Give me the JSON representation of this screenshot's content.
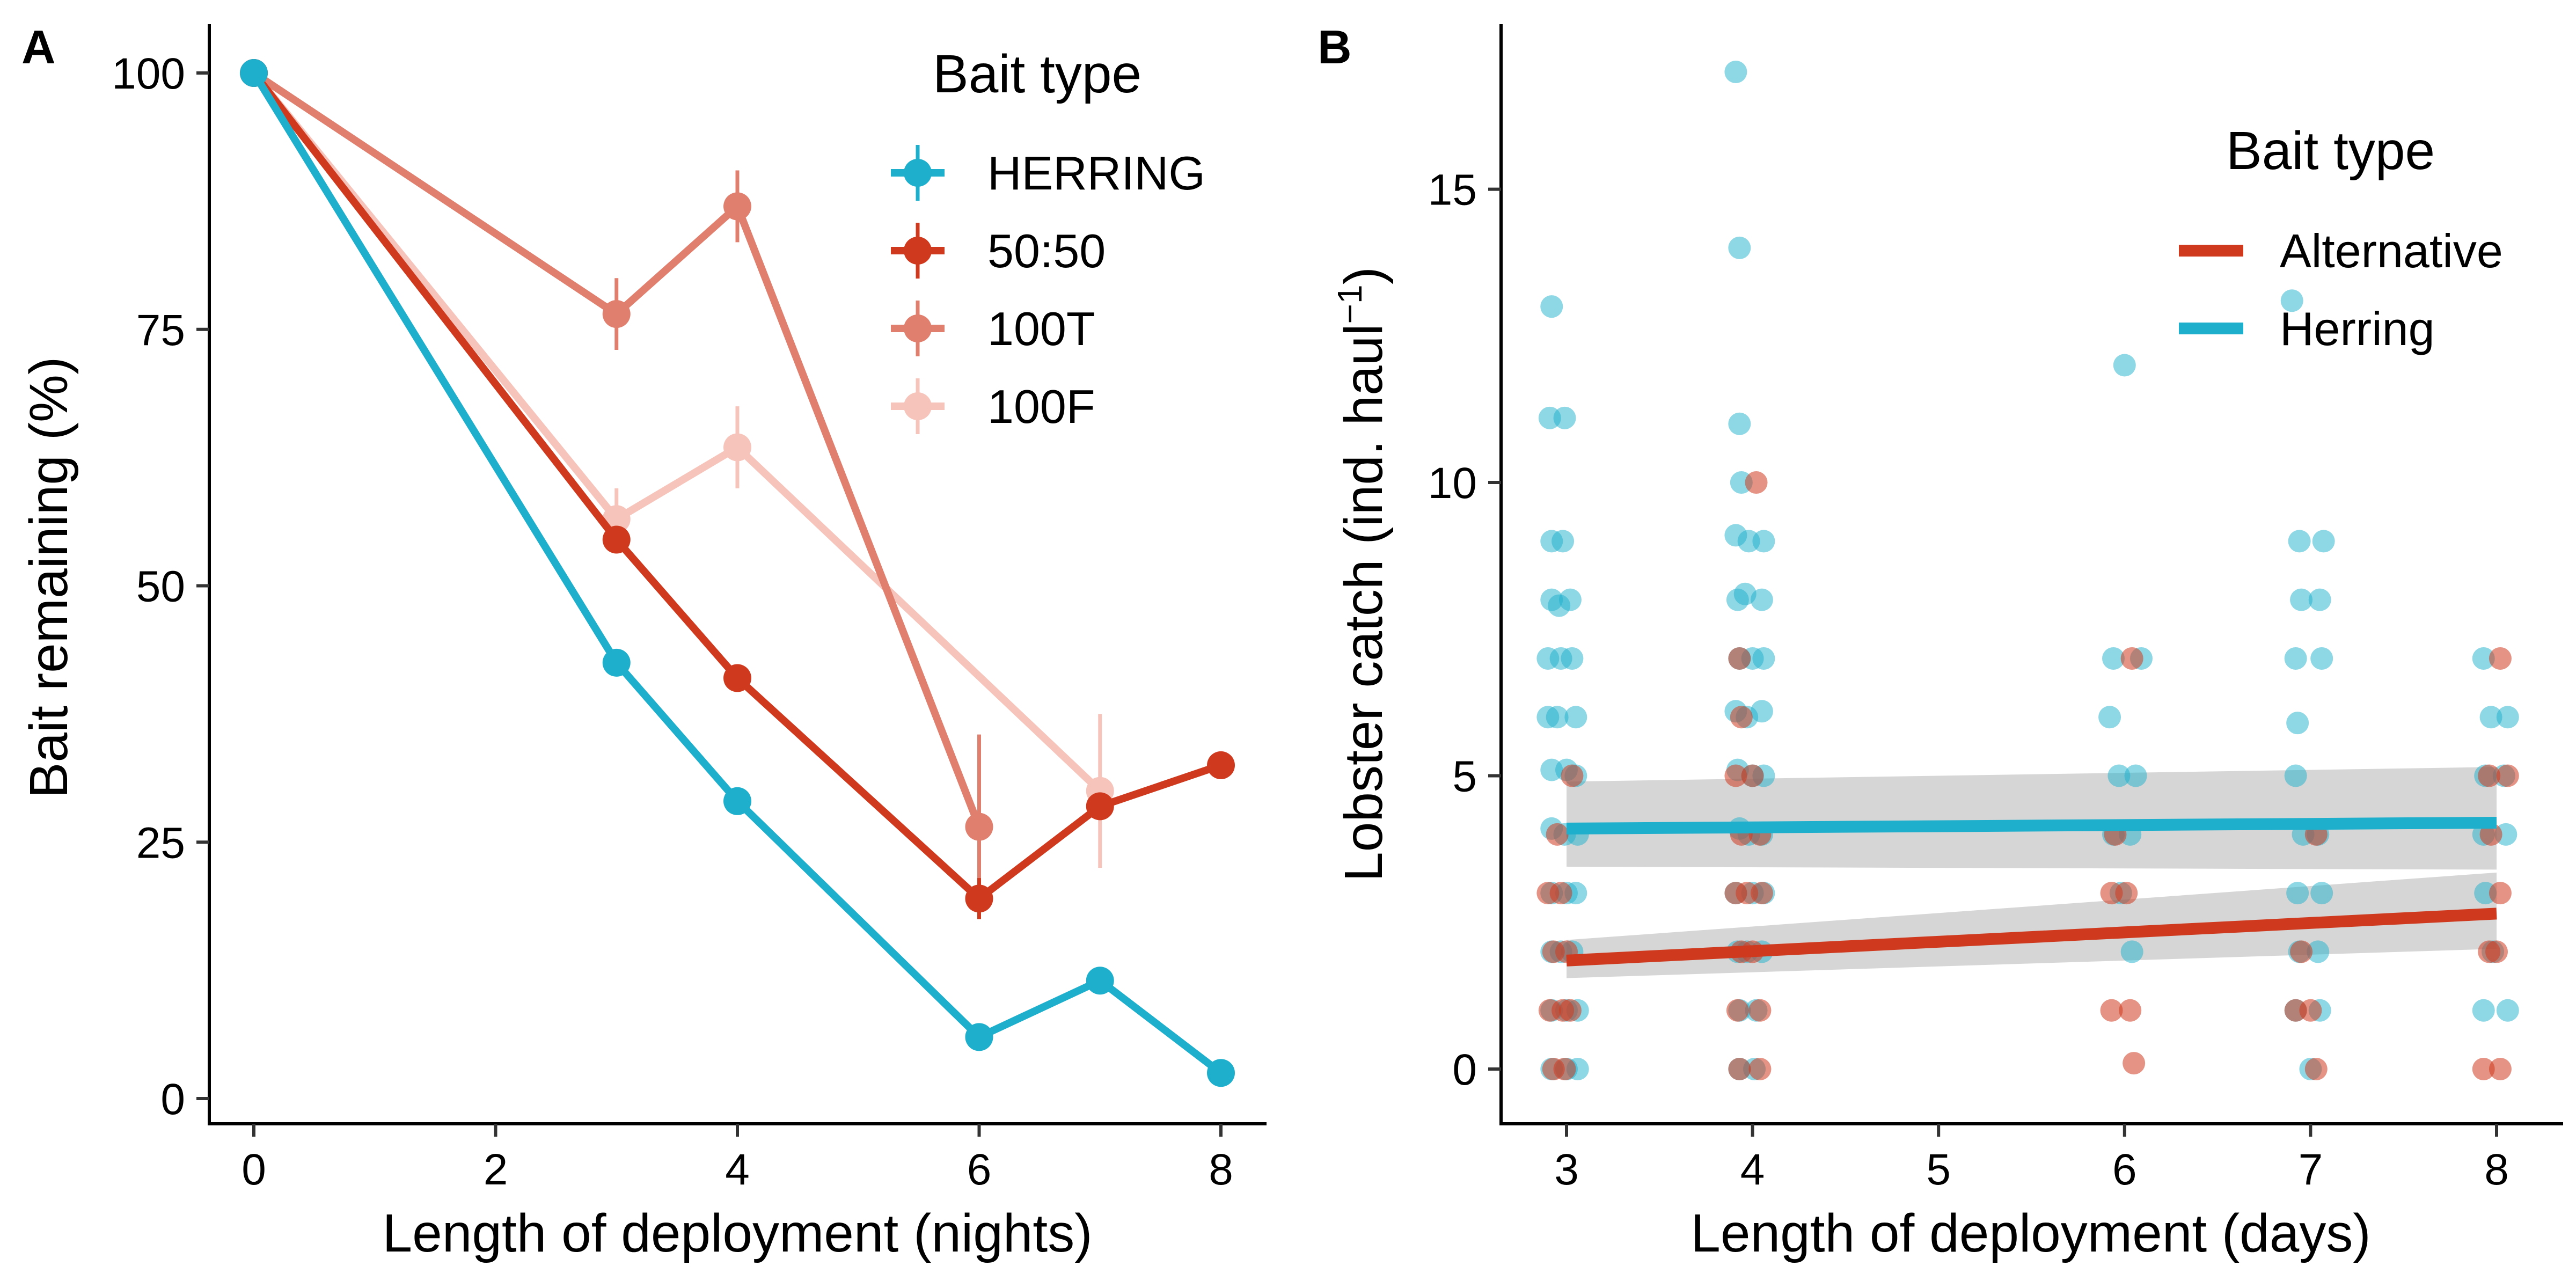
{
  "panels": {
    "a": {
      "letter": "A",
      "legend_title": "Bait type",
      "chart_data": {
        "type": "line",
        "title": "",
        "xlabel": "Length of deployment (nights)",
        "ylabel": "Bait remaining (%)",
        "xlim": [
          0,
          8
        ],
        "ylim": [
          0,
          100
        ],
        "xticks": [
          0,
          2,
          4,
          6,
          8
        ],
        "yticks": [
          0,
          25,
          50,
          75,
          100
        ],
        "grid": false,
        "legend_position": "top-right",
        "series": [
          {
            "name": "HERRING",
            "color": "#1DAFCC",
            "x": [
              0,
              3,
              4,
              6,
              7,
              8
            ],
            "y": [
              100,
              42.5,
              29,
              6,
              11.5,
              2.5
            ],
            "err": [
              0,
              0,
              0,
              0,
              0,
              0
            ]
          },
          {
            "name": "50:50",
            "color": "#CF3A1F",
            "x": [
              0,
              3,
              4,
              6,
              7,
              8
            ],
            "y": [
              100,
              54.5,
              41,
              19.5,
              28.5,
              32.5
            ],
            "err": [
              0,
              0,
              0,
              2,
              0,
              0
            ]
          },
          {
            "name": "100T",
            "color": "#E07F6E",
            "x": [
              0,
              3,
              4,
              6
            ],
            "y": [
              100,
              76.5,
              87,
              26.5
            ],
            "err": [
              0,
              3.5,
              3.5,
              9
            ]
          },
          {
            "name": "100F",
            "color": "#F6C4BA",
            "x": [
              0,
              3,
              4,
              7
            ],
            "y": [
              100,
              56.5,
              63.5,
              30
            ],
            "err": [
              0,
              3,
              4,
              7.5
            ]
          }
        ]
      }
    },
    "b": {
      "letter": "B",
      "legend_title": "Bait type",
      "chart_data": {
        "type": "scatter",
        "title": "",
        "xlabel": "Length of deployment (days)",
        "ylabel": "Lobster catch (ind. haul",
        "ylabel_sup": "−1",
        "ylabel_end": ")",
        "xlim": [
          2.6,
          8.35
        ],
        "ylim": [
          -0.8,
          18
        ],
        "xticks": [
          3,
          4,
          5,
          6,
          7,
          8
        ],
        "yticks": [
          0,
          5,
          10,
          15
        ],
        "grid": false,
        "legend_position": "top-right",
        "series": [
          {
            "name": "Alternative",
            "color": "#CF3A1F",
            "fit": {
              "x": [
                3,
                8
              ],
              "y": [
                1.85,
                2.65
              ],
              "lower": [
                1.55,
                2.05
              ],
              "upper": [
                2.2,
                3.35
              ]
            }
          },
          {
            "name": "Herring",
            "color": "#1DAFCC",
            "fit": {
              "x": [
                3,
                8
              ],
              "y": [
                4.1,
                4.2
              ],
              "lower": [
                3.45,
                3.4
              ],
              "upper": [
                4.9,
                5.15
              ]
            }
          }
        ],
        "points_herring": [
          [
            2.92,
            13
          ],
          [
            2.91,
            11.1
          ],
          [
            2.99,
            11.1
          ],
          [
            2.92,
            9
          ],
          [
            2.98,
            9
          ],
          [
            2.92,
            8
          ],
          [
            2.96,
            7.9
          ],
          [
            3.02,
            8
          ],
          [
            2.9,
            7
          ],
          [
            2.97,
            7
          ],
          [
            3.03,
            7
          ],
          [
            2.9,
            6
          ],
          [
            2.95,
            6
          ],
          [
            3.05,
            6
          ],
          [
            2.92,
            5.1
          ],
          [
            3.0,
            5.1
          ],
          [
            3.05,
            5
          ],
          [
            2.92,
            4.1
          ],
          [
            2.99,
            4
          ],
          [
            3.06,
            4
          ],
          [
            2.92,
            3
          ],
          [
            3.0,
            3
          ],
          [
            3.05,
            3
          ],
          [
            2.92,
            2
          ],
          [
            2.97,
            2
          ],
          [
            3.03,
            2
          ],
          [
            2.92,
            1
          ],
          [
            3.0,
            1
          ],
          [
            3.06,
            1
          ],
          [
            2.92,
            0
          ],
          [
            3.0,
            0
          ],
          [
            3.06,
            0
          ],
          [
            3.91,
            17
          ],
          [
            3.93,
            14
          ],
          [
            3.93,
            11
          ],
          [
            3.94,
            10
          ],
          [
            3.91,
            9.1
          ],
          [
            3.98,
            9
          ],
          [
            4.06,
            9
          ],
          [
            3.92,
            8
          ],
          [
            3.96,
            8.1
          ],
          [
            4.05,
            8
          ],
          [
            3.93,
            7
          ],
          [
            4.0,
            7
          ],
          [
            4.06,
            7
          ],
          [
            3.91,
            6.1
          ],
          [
            3.97,
            6
          ],
          [
            4.05,
            6.1
          ],
          [
            3.92,
            5.1
          ],
          [
            4.0,
            5
          ],
          [
            4.06,
            5
          ],
          [
            3.93,
            4.1
          ],
          [
            3.98,
            4
          ],
          [
            4.05,
            4
          ],
          [
            3.91,
            3
          ],
          [
            4.0,
            3
          ],
          [
            4.06,
            3
          ],
          [
            3.92,
            2
          ],
          [
            3.97,
            2
          ],
          [
            4.05,
            2
          ],
          [
            3.93,
            1
          ],
          [
            4.02,
            1
          ],
          [
            3.93,
            0
          ],
          [
            4.01,
            0
          ],
          [
            6.0,
            12
          ],
          [
            5.94,
            7
          ],
          [
            6.09,
            7
          ],
          [
            5.92,
            6
          ],
          [
            5.97,
            5
          ],
          [
            6.06,
            5
          ],
          [
            5.94,
            4
          ],
          [
            6.03,
            4
          ],
          [
            5.98,
            3
          ],
          [
            6.04,
            2
          ],
          [
            6.9,
            13.1
          ],
          [
            6.94,
            9
          ],
          [
            7.07,
            9
          ],
          [
            6.95,
            8
          ],
          [
            7.05,
            8
          ],
          [
            6.92,
            7
          ],
          [
            7.06,
            7
          ],
          [
            6.93,
            5.9
          ],
          [
            6.92,
            5
          ],
          [
            6.96,
            4
          ],
          [
            7.04,
            4
          ],
          [
            6.93,
            3
          ],
          [
            7.06,
            3
          ],
          [
            6.94,
            2
          ],
          [
            7.04,
            2
          ],
          [
            6.92,
            1
          ],
          [
            7.05,
            1
          ],
          [
            7.0,
            0
          ],
          [
            7.93,
            7
          ],
          [
            7.97,
            6
          ],
          [
            8.06,
            6
          ],
          [
            7.94,
            5
          ],
          [
            8.04,
            5
          ],
          [
            7.93,
            4
          ],
          [
            8.05,
            4
          ],
          [
            7.94,
            3
          ],
          [
            7.98,
            2
          ],
          [
            7.93,
            1
          ],
          [
            8.06,
            1
          ]
        ],
        "points_alternative": [
          [
            3.03,
            5
          ],
          [
            2.95,
            4
          ],
          [
            2.9,
            3
          ],
          [
            2.97,
            3
          ],
          [
            2.93,
            2
          ],
          [
            3.0,
            2
          ],
          [
            2.91,
            1
          ],
          [
            2.98,
            1
          ],
          [
            3.02,
            1
          ],
          [
            2.93,
            0
          ],
          [
            2.99,
            0
          ],
          [
            4.02,
            10
          ],
          [
            3.93,
            7
          ],
          [
            3.94,
            6
          ],
          [
            3.91,
            5
          ],
          [
            4.0,
            5
          ],
          [
            3.94,
            4
          ],
          [
            4.04,
            4
          ],
          [
            3.91,
            3
          ],
          [
            3.97,
            3
          ],
          [
            4.05,
            3
          ],
          [
            3.94,
            2
          ],
          [
            4.0,
            2
          ],
          [
            3.92,
            1
          ],
          [
            4.04,
            1
          ],
          [
            3.93,
            0
          ],
          [
            4.04,
            0
          ],
          [
            6.04,
            7
          ],
          [
            5.95,
            4
          ],
          [
            5.93,
            3
          ],
          [
            6.01,
            3
          ],
          [
            5.93,
            1
          ],
          [
            6.03,
            1
          ],
          [
            6.05,
            0.1
          ],
          [
            7.03,
            4
          ],
          [
            6.95,
            2
          ],
          [
            6.92,
            1
          ],
          [
            7.0,
            1
          ],
          [
            7.03,
            0
          ],
          [
            8.02,
            7
          ],
          [
            7.96,
            5
          ],
          [
            8.06,
            5
          ],
          [
            7.97,
            4
          ],
          [
            8.02,
            3
          ],
          [
            7.96,
            2
          ],
          [
            8.0,
            2
          ],
          [
            7.93,
            0
          ],
          [
            8.02,
            0
          ]
        ]
      }
    }
  }
}
